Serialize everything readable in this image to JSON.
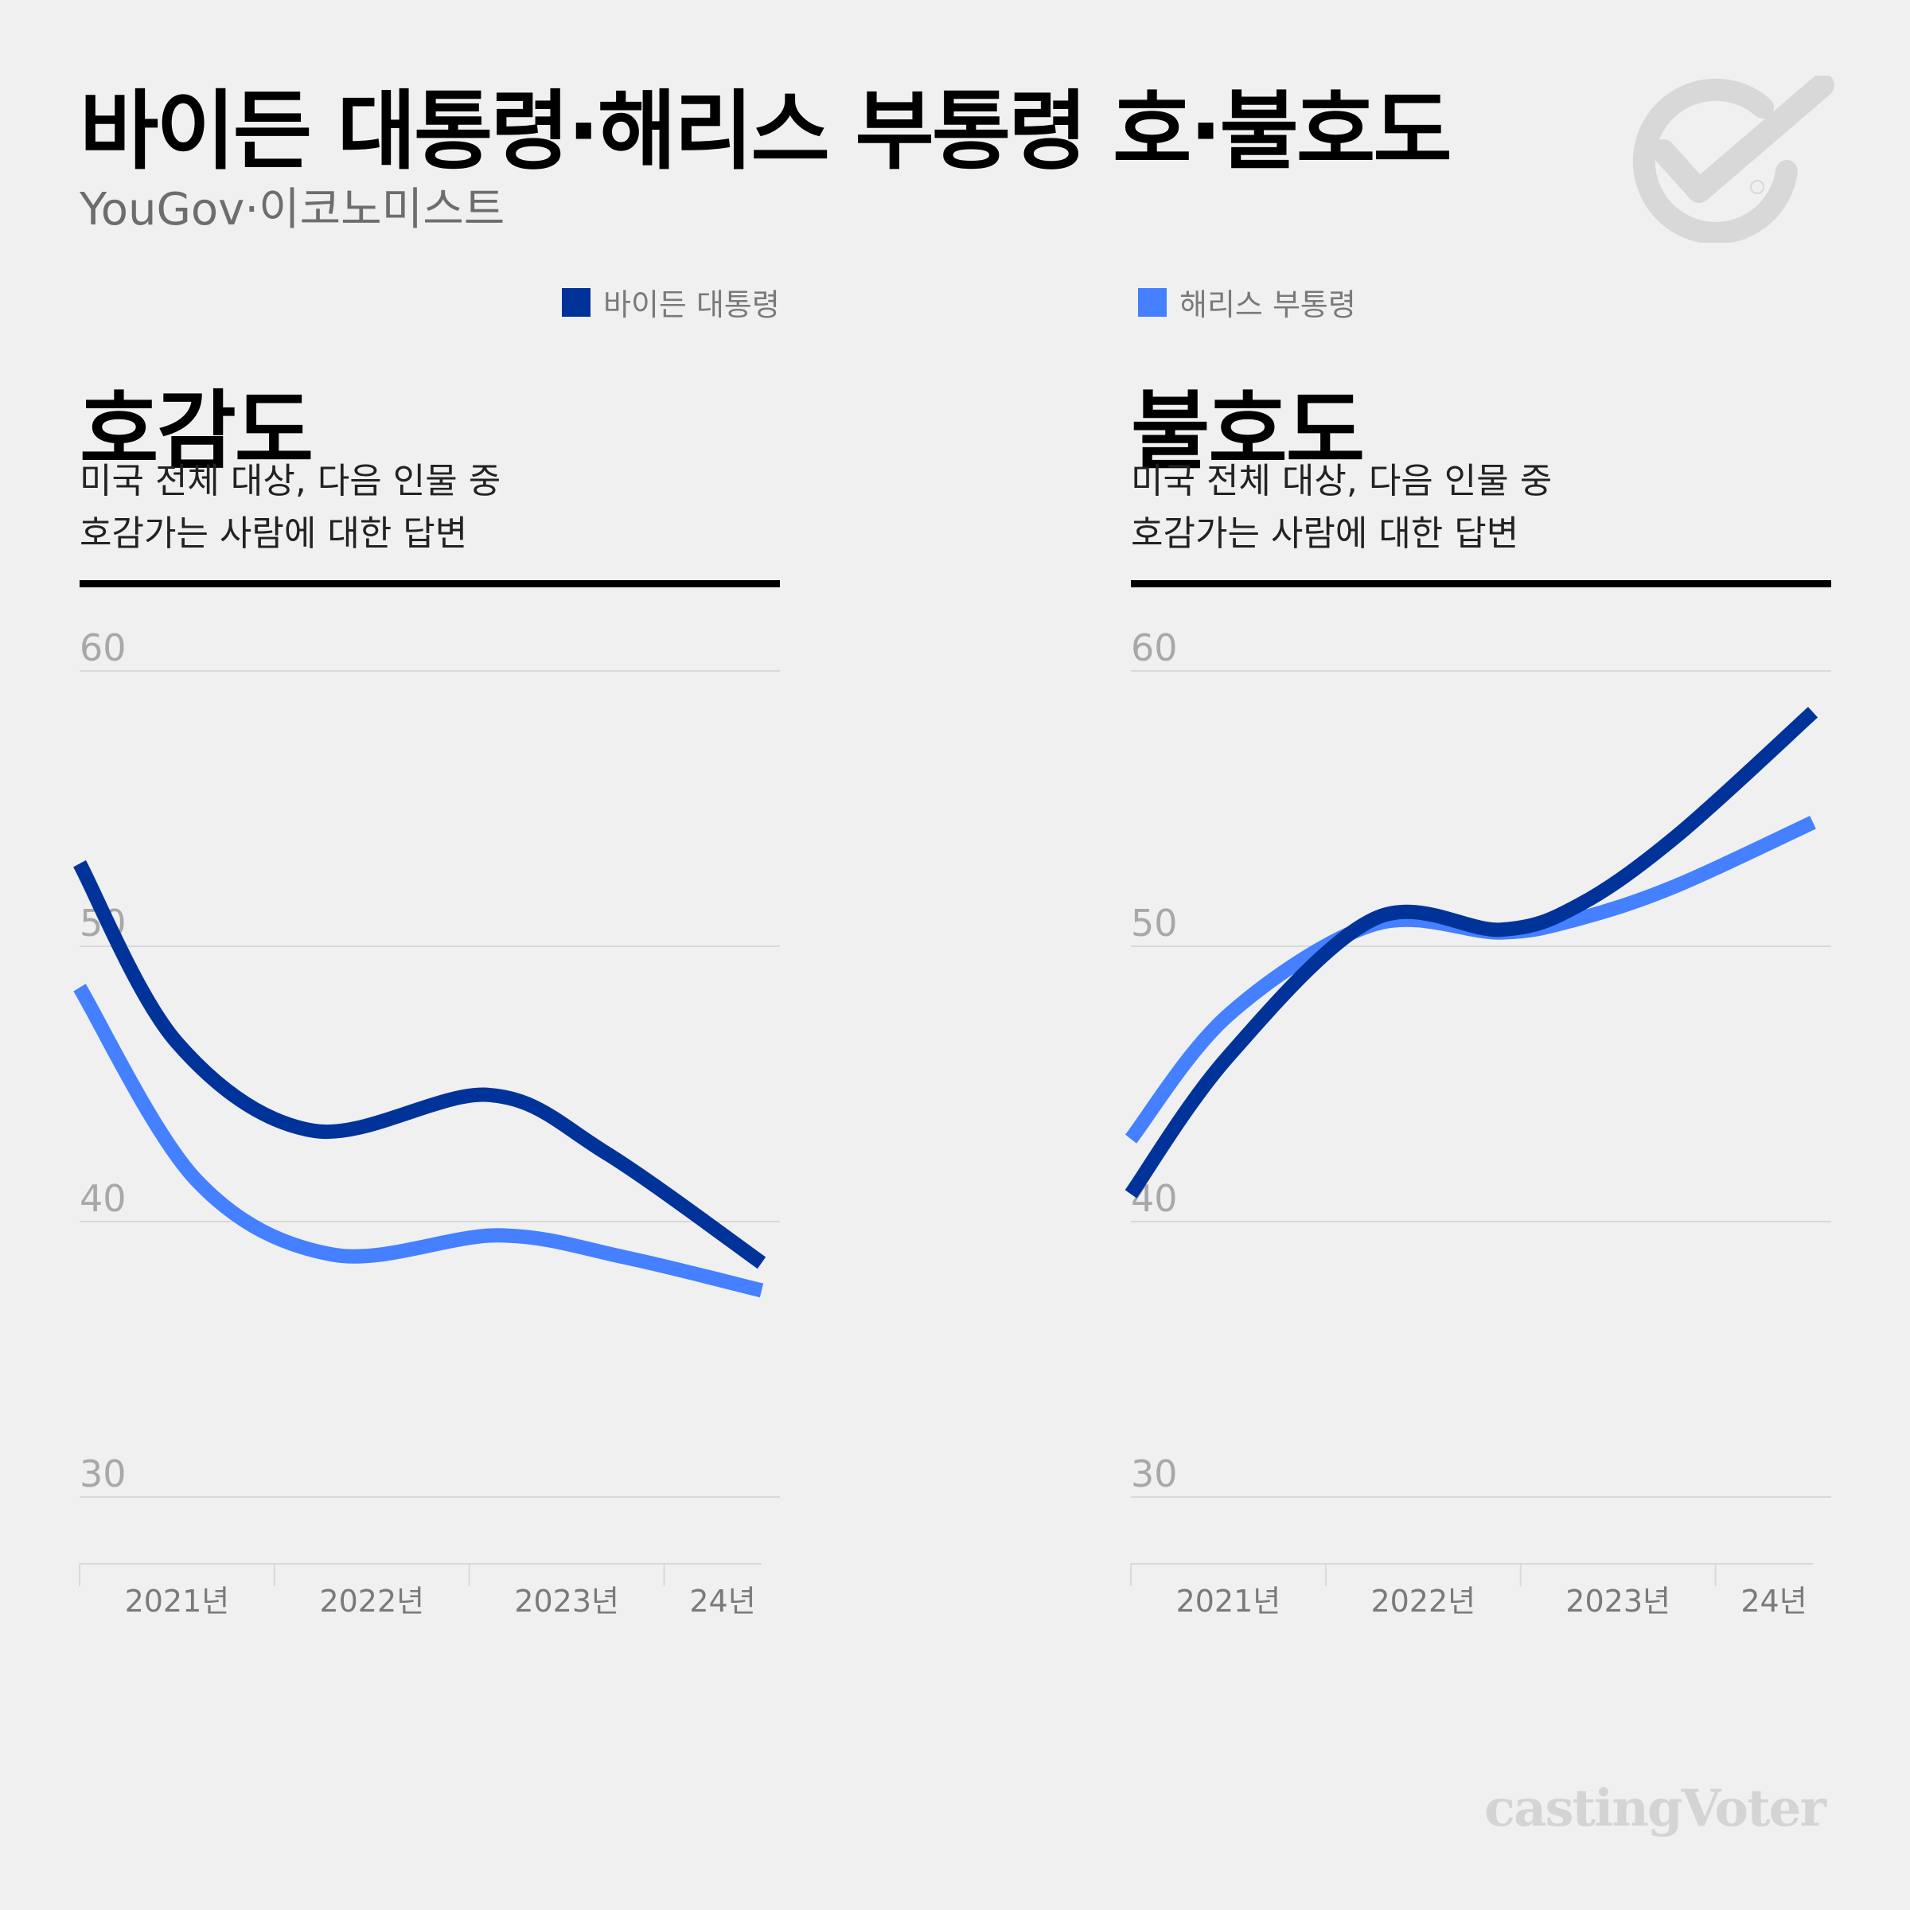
{
  "header": {
    "title": "바이든 대통령·해리스 부통령 호·불호도",
    "source": "YouGov·이코노미스트"
  },
  "legend": [
    {
      "label": "바이든 대통령",
      "color": "#003399"
    },
    {
      "label": "해리스 부통령",
      "color": "#4480ff"
    }
  ],
  "colors": {
    "biden": "#003399",
    "harris": "#4480ff",
    "grid": "#d9d9d9",
    "axis_text": "#a8a8a8",
    "x_text": "#7a7a7a"
  },
  "logo": {
    "icon": "checkmark-circle-icon"
  },
  "brand": "castingVoter",
  "panels": [
    {
      "title": "호감도",
      "description": "미국 전체 대상, 다음 인물 중\n호감가는 사람에 대한 답변"
    },
    {
      "title": "불호도",
      "description": "미국 전체 대상, 다음 인물 중\n호감가는 사람에 대한 답변"
    }
  ],
  "chart_data": [
    {
      "type": "line",
      "title": "호감도",
      "x_categories": [
        "2021년",
        "2022년",
        "2023년",
        "24년"
      ],
      "yticks": [
        60,
        50,
        40,
        30
      ],
      "ylim": [
        30,
        60
      ],
      "grid": true,
      "legend_position": "top",
      "series": [
        {
          "name": "바이든 대통령",
          "x": [
            2021.0,
            2021.5,
            2022.2,
            2023.1,
            2023.7,
            2024.5
          ],
          "values": [
            53,
            46.5,
            43.3,
            44.6,
            42.5,
            38.5
          ]
        },
        {
          "name": "해리스 부통령",
          "x": [
            2021.0,
            2021.6,
            2022.3,
            2023.15,
            2023.8,
            2024.5
          ],
          "values": [
            48.5,
            41.5,
            38.8,
            39.5,
            38.7,
            37.5
          ]
        }
      ]
    },
    {
      "type": "line",
      "title": "불호도",
      "x_categories": [
        "2021년",
        "2022년",
        "2023년",
        "24년"
      ],
      "yticks": [
        60,
        50,
        40,
        30
      ],
      "ylim": [
        30,
        60
      ],
      "grid": true,
      "legend_position": "top",
      "series": [
        {
          "name": "바이든 대통령",
          "x": [
            2021.0,
            2021.5,
            2022.25,
            2022.9,
            2023.3,
            2023.8,
            2024.5
          ],
          "values": [
            41,
            46,
            51,
            50.6,
            51.5,
            54,
            58.5
          ]
        },
        {
          "name": "해리스 부통령",
          "x": [
            2021.0,
            2021.5,
            2022.25,
            2022.9,
            2023.3,
            2023.8,
            2024.5
          ],
          "values": [
            43,
            47.5,
            50.8,
            50.5,
            51,
            52.2,
            54.5
          ]
        }
      ]
    }
  ]
}
